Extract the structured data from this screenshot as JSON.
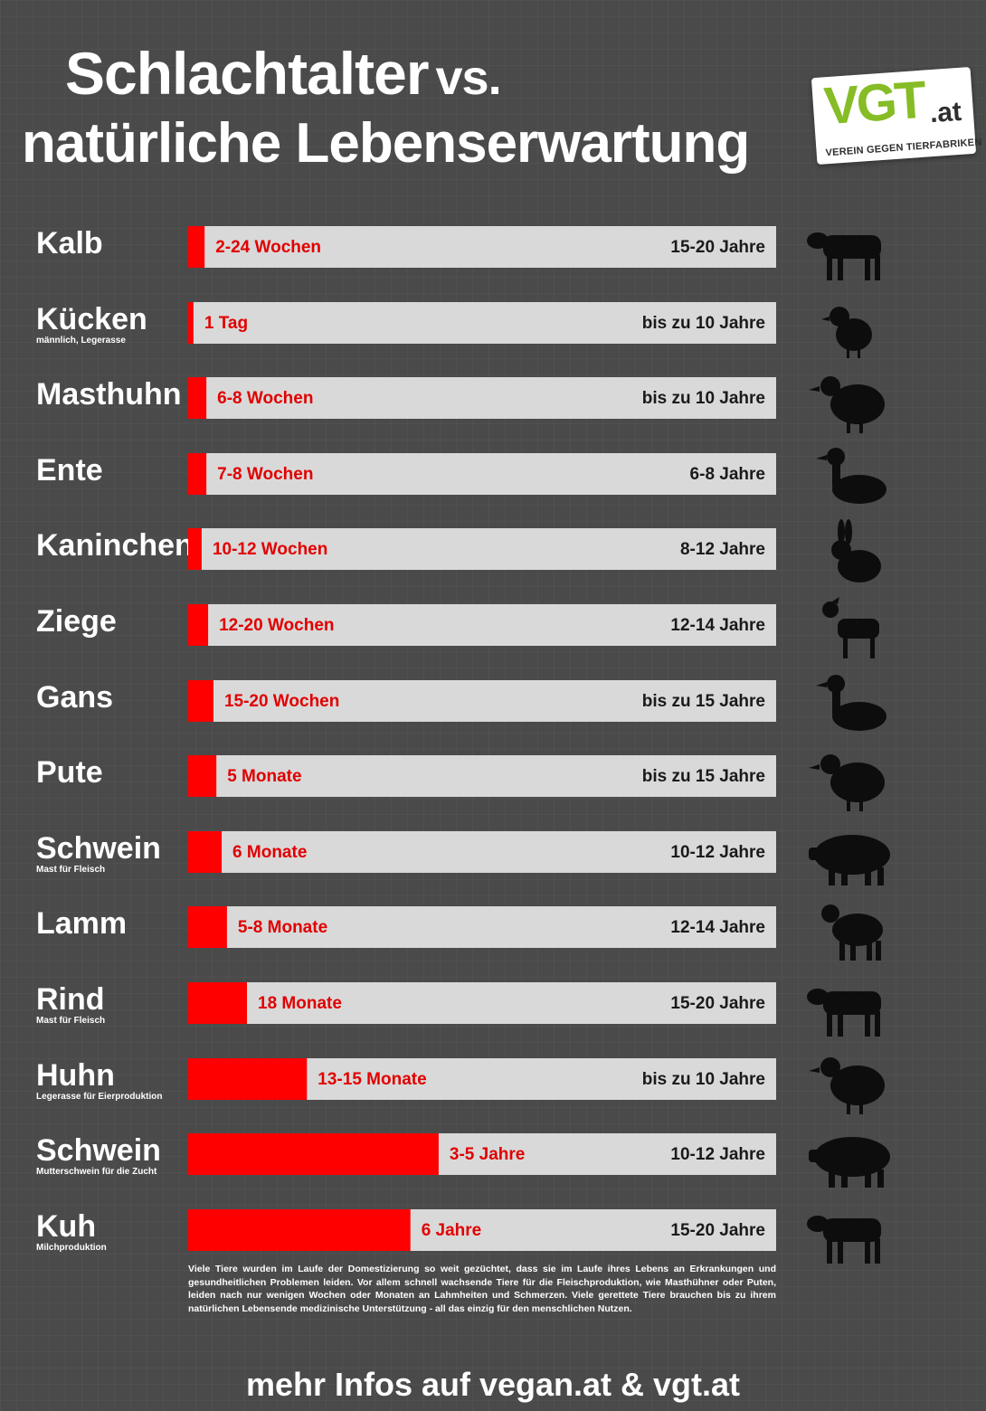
{
  "header": {
    "title_line1": "Schlachtalter",
    "title_vs": "vs.",
    "title_line2": "natürliche Lebenserwartung"
  },
  "logo": {
    "main": "VGT",
    "suffix": ".at",
    "subtitle": "VEREIN GEGEN TIERFABRIKEN",
    "brand_color": "#86bc25"
  },
  "colors": {
    "background": "#4a4a4b",
    "bar_track": "#d9d9d9",
    "bar_fill": "#ff0000",
    "slaughter_text": "#e10000"
  },
  "chart_data": {
    "type": "bar",
    "rows": [
      {
        "animal": "Kalb",
        "note": "",
        "slaughter_age": "2-24 Wochen",
        "life_expectancy": "15-20 Jahre",
        "fraction": 0.028,
        "icon": "calf-icon"
      },
      {
        "animal": "Kücken",
        "note": "männlich, Legerasse",
        "slaughter_age": "1 Tag",
        "life_expectancy": "bis zu 10 Jahre",
        "fraction": 0.009,
        "icon": "chick-icon"
      },
      {
        "animal": "Masthuhn",
        "note": "",
        "slaughter_age": "6-8 Wochen",
        "life_expectancy": "bis zu 10 Jahre",
        "fraction": 0.031,
        "icon": "hen-icon"
      },
      {
        "animal": "Ente",
        "note": "",
        "slaughter_age": "7-8 Wochen",
        "life_expectancy": "6-8 Jahre",
        "fraction": 0.031,
        "icon": "duck-icon"
      },
      {
        "animal": "Kaninchen",
        "note": "",
        "slaughter_age": "10-12 Wochen",
        "life_expectancy": "8-12 Jahre",
        "fraction": 0.023,
        "icon": "rabbit-icon"
      },
      {
        "animal": "Ziege",
        "note": "",
        "slaughter_age": "12-20 Wochen",
        "life_expectancy": "12-14 Jahre",
        "fraction": 0.034,
        "icon": "goat-icon"
      },
      {
        "animal": "Gans",
        "note": "",
        "slaughter_age": "15-20 Wochen",
        "life_expectancy": "bis zu 15 Jahre",
        "fraction": 0.043,
        "icon": "goose-icon"
      },
      {
        "animal": "Pute",
        "note": "",
        "slaughter_age": "5 Monate",
        "life_expectancy": "bis zu 15 Jahre",
        "fraction": 0.048,
        "icon": "turkey-icon"
      },
      {
        "animal": "Schwein",
        "note": "Mast für Fleisch",
        "slaughter_age": "6 Monate",
        "life_expectancy": "10-12 Jahre",
        "fraction": 0.057,
        "icon": "pig-icon"
      },
      {
        "animal": "Lamm",
        "note": "",
        "slaughter_age": "5-8 Monate",
        "life_expectancy": "12-14 Jahre",
        "fraction": 0.066,
        "icon": "lamb-icon"
      },
      {
        "animal": "Rind",
        "note": "Mast für Fleisch",
        "slaughter_age": "18 Monate",
        "life_expectancy": "15-20 Jahre",
        "fraction": 0.1,
        "icon": "cow-icon"
      },
      {
        "animal": "Huhn",
        "note": "Legerasse für Eierproduktion",
        "slaughter_age": "13-15 Monate",
        "life_expectancy": "bis zu 10 Jahre",
        "fraction": 0.202,
        "icon": "hen-icon"
      },
      {
        "animal": "Schwein",
        "note": "Mutterschwein für die Zucht",
        "slaughter_age": "3-5 Jahre",
        "life_expectancy": "10-12 Jahre",
        "fraction": 0.426,
        "icon": "sow-icon"
      },
      {
        "animal": "Kuh",
        "note": "Milchproduktion",
        "slaughter_age": "6 Jahre",
        "life_expectancy": "15-20 Jahre",
        "fraction": 0.378,
        "icon": "dairy-cow-icon"
      }
    ]
  },
  "note_text": "Viele Tiere wurden im Laufe der Domestizierung so weit gezüchtet, dass sie im Laufe ihres Lebens an Erkrankungen und gesundheitlichen Problemen leiden. Vor allem schnell wachsende Tiere für die Fleischproduktion, wie Masthühner oder Puten, leiden nach nur wenigen Wochen oder Monaten an Lahmheiten und Schmerzen. Viele gerettete Tiere brauchen bis zu ihrem natürlichen Lebensende medizinische Unterstützung - all das einzig für den menschlichen Nutzen.",
  "footer": "mehr Infos auf vegan.at & vgt.at"
}
